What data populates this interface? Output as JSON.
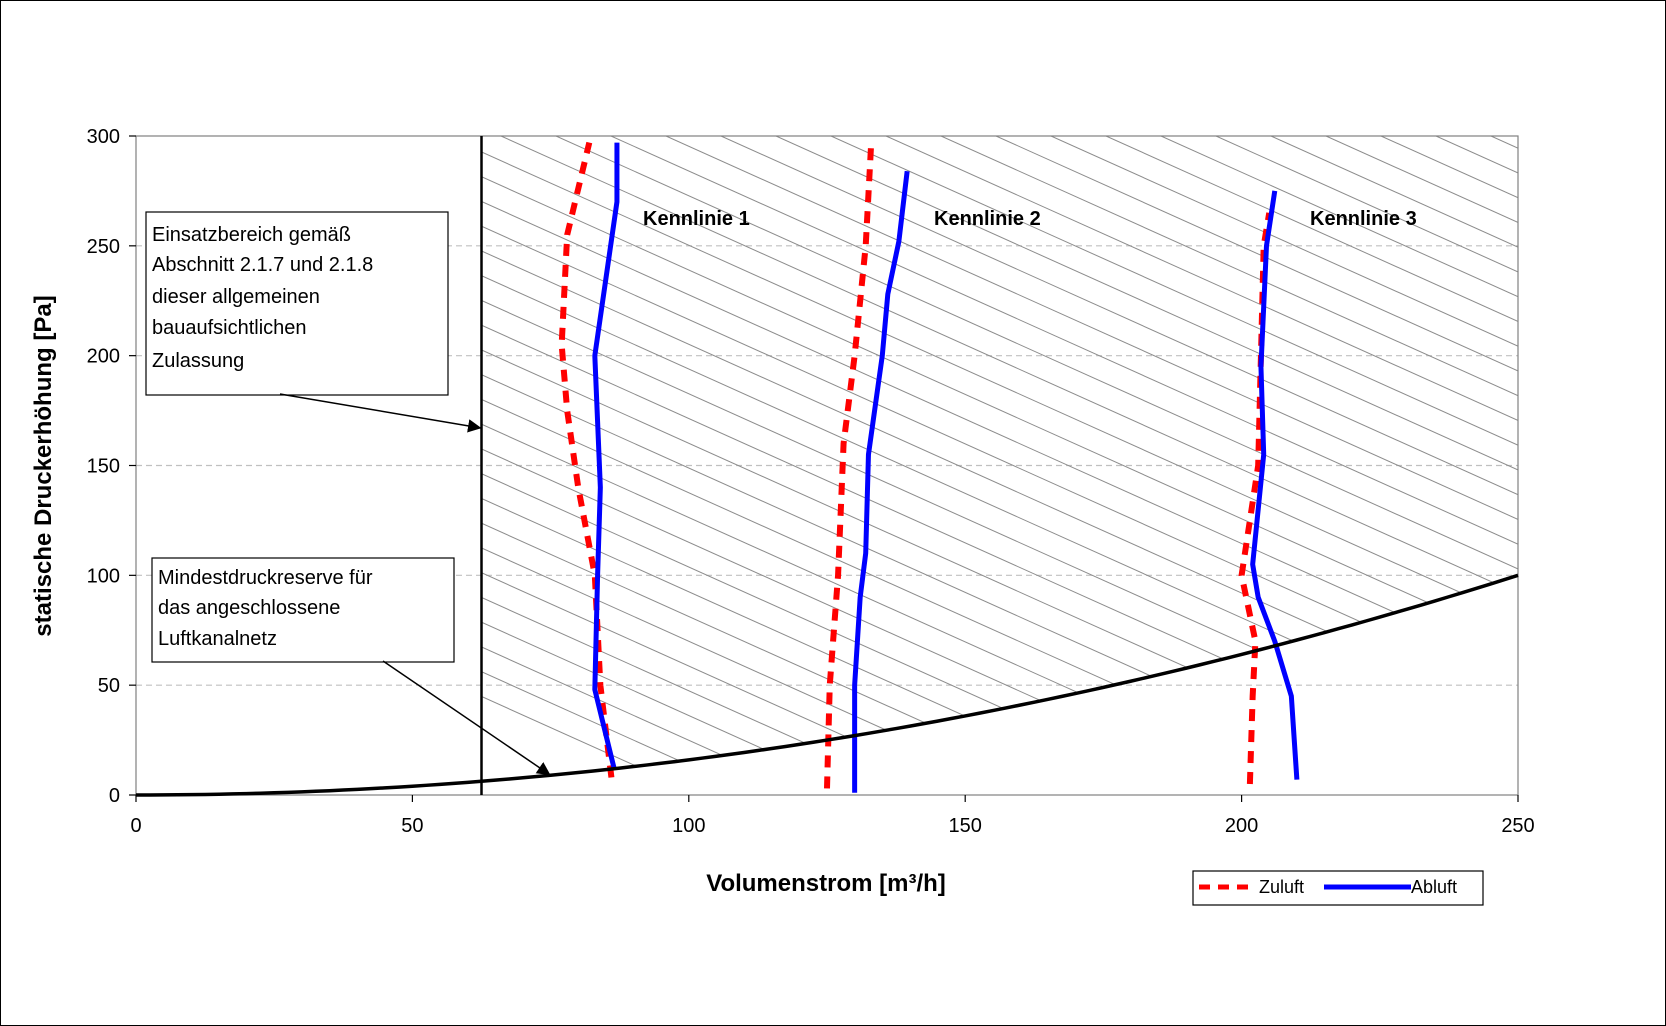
{
  "chart_data": {
    "type": "line",
    "xlabel": "Volumenstrom [m³/h]",
    "ylabel": "statische Druckerhöhung [Pa]",
    "xlim": [
      0,
      250
    ],
    "ylim": [
      0,
      300
    ],
    "xticks": [
      "0",
      "50",
      "100",
      "150",
      "200",
      "250"
    ],
    "yticks": [
      "0",
      "50",
      "100",
      "150",
      "200",
      "250",
      "300"
    ],
    "grid": "horizontal dashed",
    "legend_position": "bottom-right",
    "legend": [
      {
        "name": "Zuluft",
        "color": "#ff0000",
        "style": "dashed"
      },
      {
        "name": "Abluft",
        "color": "#0000ff",
        "style": "solid"
      }
    ],
    "vertical_line_x": 62.5,
    "min_curve": {
      "name": "Mindestdruckreserve",
      "x": [
        0,
        25,
        50,
        62.5,
        75,
        100,
        125,
        150,
        175,
        200,
        225,
        250
      ],
      "y": [
        0,
        1,
        4,
        6.25,
        9,
        16,
        25,
        36,
        49,
        64,
        81,
        100
      ]
    },
    "curve_labels": [
      "Kennlinie 1",
      "Kennlinie 2",
      "Kennlinie 3"
    ],
    "series": [
      {
        "group": "Kennlinie 1",
        "kind": "Zuluft",
        "x": [
          86,
          84,
          83,
          80,
          78,
          77,
          78,
          82
        ],
        "y": [
          8,
          50,
          100,
          140,
          175,
          205,
          255,
          297
        ]
      },
      {
        "group": "Kennlinie 1",
        "kind": "Abluft",
        "x": [
          86.5,
          83,
          83.5,
          84,
          83,
          87,
          87
        ],
        "y": [
          12,
          48,
          100,
          140,
          200,
          270,
          297
        ]
      },
      {
        "group": "Kennlinie 2",
        "kind": "Zuluft",
        "x": [
          125,
          125.5,
          127,
          128,
          130,
          132,
          133
        ],
        "y": [
          3,
          50,
          100,
          160,
          200,
          250,
          297
        ]
      },
      {
        "group": "Kennlinie 2",
        "kind": "Abluft",
        "x": [
          130,
          130,
          131,
          132,
          132.5,
          135,
          136,
          138,
          139.5
        ],
        "y": [
          1,
          50,
          90,
          110,
          155,
          200,
          228,
          252,
          284
        ]
      },
      {
        "group": "Kennlinie 3",
        "kind": "Zuluft",
        "x": [
          201.5,
          202,
          202.5,
          200,
          203,
          203.5,
          204,
          205
        ],
        "y": [
          5,
          45,
          70,
          100,
          150,
          200,
          250,
          265
        ]
      },
      {
        "group": "Kennlinie 3",
        "kind": "Abluft",
        "x": [
          210,
          209,
          206,
          203,
          202,
          204,
          203.5,
          204.5,
          206
        ],
        "y": [
          7,
          45,
          70,
          90,
          105,
          155,
          195,
          250,
          275
        ]
      }
    ],
    "annotations": [
      {
        "id": "einsatz",
        "lines": [
          "Einsatzbereich  gemäß",
          "Abschnitt 2.1.7 und 2.1.8",
          "dieser allgemeinen",
          "bauaufsichtlichen",
          "Zulassung"
        ],
        "points_to_x": 62.5,
        "points_to_y": 167
      },
      {
        "id": "mindest",
        "lines": [
          "Mindestdruckreserve für",
          "das angeschlossene",
          "Luftkanalnetz"
        ],
        "points_to_x": 75,
        "points_to_y": 9
      }
    ]
  }
}
